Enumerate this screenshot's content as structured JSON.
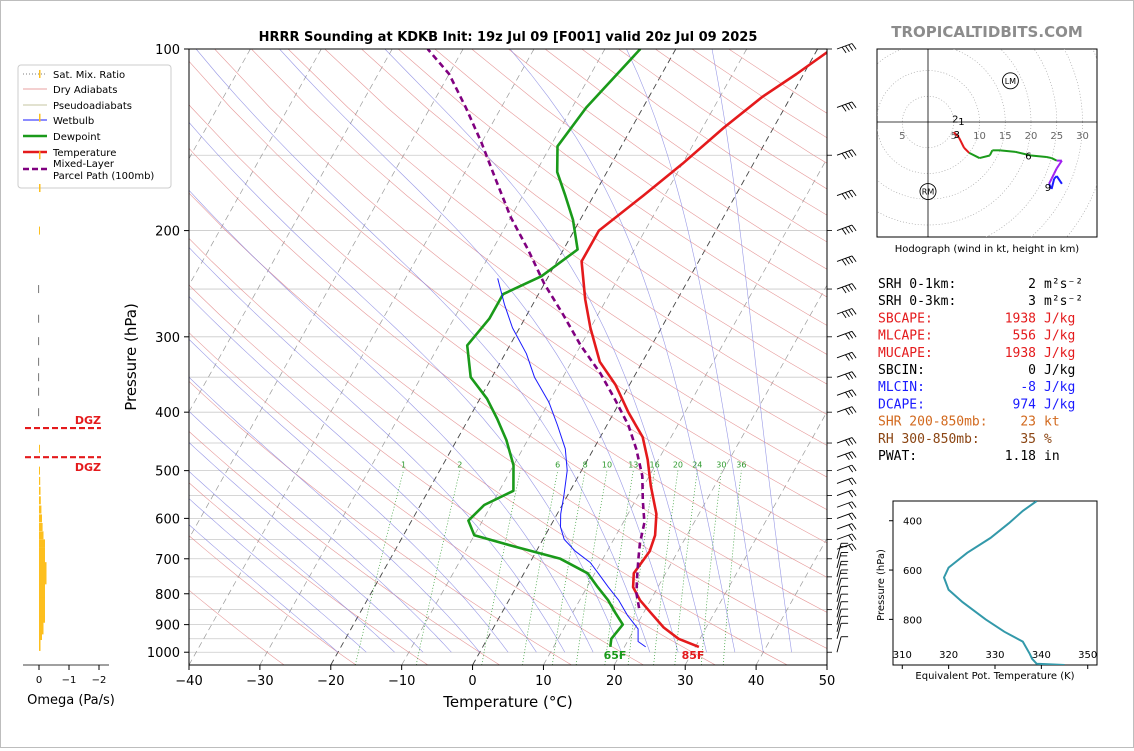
{
  "chart_data": {
    "type": "line",
    "title": "HRRR Sounding at KDKB Init: 19z Jul 09 [F001] valid 20z Jul 09 2025",
    "watermark": "TROPICALTIDBITS.COM",
    "xlabel": "Temperature (°C)",
    "ylabel": "Pressure (hPa)",
    "xlim": [
      -40,
      50
    ],
    "ylim": [
      1050,
      100
    ],
    "y_scale": "log",
    "x_ticks": [
      "−40",
      "−30",
      "−20",
      "−10",
      "0",
      "10",
      "20",
      "30",
      "40",
      "50"
    ],
    "y_ticks": [
      "100",
      "200",
      "300",
      "400",
      "500",
      "600",
      "700",
      "800",
      "900",
      "1000"
    ],
    "legend": {
      "placement": "top-left",
      "entries": [
        "Sat. Mix. Ratio",
        "Dry Adiabats",
        "Pseudoadiabats",
        "Wetbulb",
        "Dewpoint",
        "Temperature",
        "Mixed-Layer\nParcel Path (100mb)"
      ]
    },
    "colors": {
      "temperature": "#e41a1c",
      "dewpoint": "#1a9a1a",
      "wetbulb": "#1a1aff",
      "parcel": "#800080",
      "dry_adiabat": "#e08080",
      "pseudoadiabat": "#8080e0",
      "mixing_ratio": "#2e9a2e",
      "isotherm": "#808080"
    },
    "series": [
      {
        "name": "Temperature",
        "points": [
          [
            30.5,
            980
          ],
          [
            27,
            950
          ],
          [
            24,
            910
          ],
          [
            21,
            860
          ],
          [
            18.5,
            820
          ],
          [
            16.5,
            780
          ],
          [
            15.5,
            740
          ],
          [
            16,
            680
          ],
          [
            15.5,
            640
          ],
          [
            14,
            590
          ],
          [
            11,
            530
          ],
          [
            8.5,
            480
          ],
          [
            6,
            440
          ],
          [
            2,
            400
          ],
          [
            -2,
            360
          ],
          [
            -6,
            330
          ],
          [
            -10,
            290
          ],
          [
            -13,
            260
          ],
          [
            -16.5,
            225
          ],
          [
            -16.5,
            200
          ],
          [
            -13,
            175
          ],
          [
            -10,
            155
          ],
          [
            -7,
            135
          ],
          [
            -4,
            120
          ],
          [
            -1,
            110
          ],
          [
            2,
            100
          ]
        ]
      },
      {
        "name": "Dewpoint",
        "points": [
          [
            18,
            980
          ],
          [
            17.5,
            950
          ],
          [
            18,
            900
          ],
          [
            16,
            860
          ],
          [
            14,
            820
          ],
          [
            11.5,
            780
          ],
          [
            9,
            740
          ],
          [
            4,
            700
          ],
          [
            -3,
            670
          ],
          [
            -10,
            640
          ],
          [
            -12,
            605
          ],
          [
            -11,
            570
          ],
          [
            -8,
            540
          ],
          [
            -10,
            490
          ],
          [
            -13,
            445
          ],
          [
            -16,
            410
          ],
          [
            -19,
            380
          ],
          [
            -23,
            350
          ],
          [
            -26,
            310
          ],
          [
            -25,
            280
          ],
          [
            -25,
            255
          ],
          [
            -21,
            238
          ],
          [
            -18,
            215
          ],
          [
            -21,
            192
          ],
          [
            -24,
            175
          ],
          [
            -27,
            160
          ],
          [
            -29,
            145
          ],
          [
            -28,
            125
          ],
          [
            -25,
            100
          ]
        ]
      },
      {
        "name": "Wetbulb",
        "points": [
          [
            23,
            980
          ],
          [
            21.5,
            960
          ],
          [
            20.5,
            915
          ],
          [
            18,
            870
          ],
          [
            15.5,
            820
          ],
          [
            13,
            780
          ],
          [
            10.5,
            740
          ],
          [
            8.5,
            710
          ],
          [
            5.5,
            680
          ],
          [
            3,
            650
          ],
          [
            1.5,
            620
          ],
          [
            0.5,
            590
          ],
          [
            -0.5,
            550
          ],
          [
            -2,
            500
          ],
          [
            -4,
            460
          ],
          [
            -7,
            420
          ],
          [
            -10,
            385
          ],
          [
            -14,
            350
          ],
          [
            -17,
            320
          ],
          [
            -21,
            290
          ],
          [
            -24,
            265
          ],
          [
            -27,
            240
          ]
        ]
      },
      {
        "name": "Mixed-Layer\nParcel Path (100mb)",
        "points": [
          [
            19,
            845
          ],
          [
            17.5,
            800
          ],
          [
            16.5,
            760
          ],
          [
            15,
            700
          ],
          [
            14,
            660
          ],
          [
            13,
            610
          ],
          [
            11,
            560
          ],
          [
            9,
            510
          ],
          [
            6,
            460
          ],
          [
            3,
            420
          ],
          [
            -1,
            380
          ],
          [
            -5,
            345
          ],
          [
            -10,
            310
          ],
          [
            -15,
            275
          ],
          [
            -20,
            245
          ],
          [
            -25,
            215
          ],
          [
            -30,
            190
          ],
          [
            -35,
            165
          ],
          [
            -40,
            143
          ],
          [
            -45,
            125
          ],
          [
            -50,
            110
          ],
          [
            -55,
            100
          ]
        ]
      }
    ],
    "surface_labels": {
      "temperature": "85F",
      "dewpoint": "65F"
    },
    "mixing_ratio_labels": [
      "1",
      "2",
      "6",
      "8",
      "10",
      "13",
      "16",
      "20",
      "24",
      "30",
      "36"
    ],
    "omega": {
      "xlabel": "Omega (Pa/s)",
      "x_ticks": [
        "0",
        "−1",
        "−2"
      ],
      "xlim": [
        0.2,
        -2.3
      ],
      "dgz_label": "DGZ",
      "dgz_bounds_hpa": [
        425,
        475
      ],
      "bars": [
        [
          980,
          -0.05
        ],
        [
          960,
          -0.05
        ],
        [
          940,
          -0.1
        ],
        [
          920,
          -0.15
        ],
        [
          900,
          -0.15
        ],
        [
          880,
          -0.2
        ],
        [
          860,
          -0.2
        ],
        [
          840,
          -0.2
        ],
        [
          820,
          -0.2
        ],
        [
          800,
          -0.2
        ],
        [
          780,
          -0.2
        ],
        [
          760,
          -0.25
        ],
        [
          740,
          -0.25
        ],
        [
          720,
          -0.25
        ],
        [
          700,
          -0.2
        ],
        [
          680,
          -0.2
        ],
        [
          660,
          -0.2
        ],
        [
          640,
          -0.15
        ],
        [
          620,
          -0.12
        ],
        [
          600,
          -0.1
        ],
        [
          580,
          -0.08
        ],
        [
          560,
          -0.06
        ],
        [
          540,
          -0.05
        ],
        [
          520,
          -0.04
        ],
        [
          500,
          -0.03
        ],
        [
          460,
          -0.03
        ],
        [
          400,
          0.03
        ],
        [
          370,
          0.03
        ],
        [
          350,
          0.03
        ],
        [
          330,
          0.03
        ],
        [
          305,
          0.03
        ],
        [
          280,
          0.03
        ],
        [
          250,
          0.03
        ],
        [
          200,
          -0.03
        ],
        [
          170,
          -0.05
        ],
        [
          150,
          -0.05
        ],
        [
          130,
          -0.05
        ],
        [
          110,
          -0.05
        ]
      ]
    },
    "wind_barbs_pressure": [
      1000,
      950,
      925,
      900,
      875,
      850,
      825,
      800,
      775,
      750,
      725,
      700,
      675,
      650,
      625,
      600,
      575,
      550,
      525,
      500,
      475,
      450,
      400,
      375,
      350,
      325,
      300,
      275,
      250,
      225,
      200,
      175,
      150,
      125,
      100
    ],
    "hodograph": {
      "caption": "Hodograph (wind in kt, height in km)",
      "ring_labels": [
        "5",
        "10",
        "15",
        "20",
        "25",
        "30"
      ],
      "marker_labels": [
        "LM",
        "RM"
      ],
      "height_labels": [
        "2",
        "1",
        "3",
        "6",
        "9"
      ],
      "points": [
        [
          5,
          -2
        ],
        [
          6,
          -3
        ],
        [
          7,
          -5
        ],
        [
          8,
          -6
        ],
        [
          10,
          -7
        ],
        [
          12,
          -6.5
        ],
        [
          12.5,
          -5.5
        ],
        [
          14,
          -5.5
        ],
        [
          17,
          -5.8
        ],
        [
          20,
          -6.5
        ],
        [
          23,
          -6.8
        ],
        [
          24,
          -7
        ],
        [
          25,
          -7.5
        ],
        [
          26,
          -7.5
        ],
        [
          25,
          -9
        ],
        [
          24.5,
          -10
        ],
        [
          24,
          -11
        ],
        [
          23.5,
          -12
        ],
        [
          24,
          -13
        ],
        [
          24.5,
          -11
        ],
        [
          25,
          -10.5
        ],
        [
          26,
          -12
        ]
      ],
      "lm_point": [
        16,
        8
      ],
      "rm_point": [
        0,
        -13.5
      ]
    },
    "theta_e": {
      "xlabel": "Equivalent Pot. Temperature (K)",
      "ylabel": "Pressure (hPa)",
      "x_ticks": [
        "310",
        "320",
        "330",
        "340",
        "350"
      ],
      "y_ticks": [
        "400",
        "600",
        "800"
      ],
      "xlim": [
        308,
        352
      ],
      "ylim": [
        985,
        320
      ],
      "profile": [
        [
          345,
          985
        ],
        [
          339,
          980
        ],
        [
          338,
          960
        ],
        [
          337.5,
          940
        ],
        [
          336,
          890
        ],
        [
          332,
          850
        ],
        [
          328,
          800
        ],
        [
          323,
          730
        ],
        [
          320,
          680
        ],
        [
          319,
          630
        ],
        [
          320,
          590
        ],
        [
          324,
          530
        ],
        [
          329,
          470
        ],
        [
          333,
          410
        ],
        [
          336,
          360
        ],
        [
          339,
          320
        ]
      ]
    },
    "indices": [
      {
        "label": "SRH 0-1km:",
        "value": "2",
        "unit_html": "m²s⁻²"
      },
      {
        "label": "SRH 0-3km:",
        "value": "3",
        "unit_html": "m²s⁻²"
      },
      {
        "label": "SBCAPE:",
        "value": "1938",
        "unit_html": "J/kg"
      },
      {
        "label": "MLCAPE:",
        "value": "556",
        "unit_html": "J/kg"
      },
      {
        "label": "MUCAPE:",
        "value": "1938",
        "unit_html": "J/kg"
      },
      {
        "label": "SBCIN:",
        "value": "0",
        "unit_html": "J/kg"
      },
      {
        "label": "MLCIN:",
        "value": "-8",
        "unit_html": "J/kg"
      },
      {
        "label": "DCAPE:",
        "value": "974",
        "unit_html": "J/kg"
      },
      {
        "label": "SHR 200-850mb:",
        "value": "23",
        "unit_html": "kt"
      },
      {
        "label": "RH 300-850mb:",
        "value": "35",
        "unit_html": "%"
      },
      {
        "label": "PWAT:",
        "value": "1.18",
        "unit_html": "in"
      }
    ],
    "index_colors": [
      "#000000",
      "#000000",
      "#e41a1c",
      "#e41a1c",
      "#e41a1c",
      "#000000",
      "#1a1aff",
      "#1a1aff",
      "#d2691e",
      "#8b4513",
      "#000000"
    ]
  }
}
